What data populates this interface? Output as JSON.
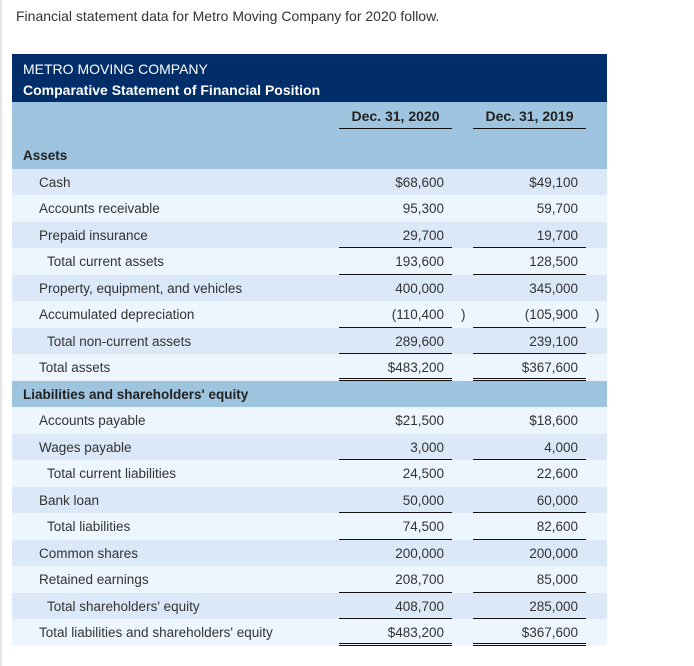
{
  "intro": "Financial statement data for Metro Moving Company for 2020 follow.",
  "company": "METRO MOVING COMPANY",
  "statement": "Comparative Statement of Financial Position",
  "columns": [
    "Dec. 31, 2020",
    "Dec. 31, 2019"
  ],
  "rows": [
    {
      "label": "Assets",
      "type": "sec"
    },
    {
      "label": "Cash",
      "v1": "$68,600",
      "v2": "$49,100"
    },
    {
      "label": "Accounts receivable",
      "v1": "95,300",
      "v2": "59,700"
    },
    {
      "label": "Prepaid insurance",
      "v1": "29,700",
      "v2": "19,700",
      "line": "u"
    },
    {
      "label": "Total current assets",
      "type": "tot",
      "v1": "193,600",
      "v2": "128,500",
      "line": "u"
    },
    {
      "label": "Property, equipment, and vehicles",
      "v1": "400,000",
      "v2": "345,000"
    },
    {
      "label": "Accumulated depreciation",
      "v1": "(110,400",
      "v2": "(105,900",
      "paren": ")",
      "line": "u"
    },
    {
      "label": "Total non-current assets",
      "type": "tot",
      "v1": "289,600",
      "v2": "239,100",
      "line": "u"
    },
    {
      "label": "Total assets",
      "v1": "$483,200",
      "v2": "$367,600",
      "line": "dbl"
    },
    {
      "label": "Liabilities and shareholders' equity",
      "type": "sec"
    },
    {
      "label": "Accounts payable",
      "v1": "$21,500",
      "v2": "$18,600"
    },
    {
      "label": "Wages payable",
      "v1": "3,000",
      "v2": "4,000",
      "line": "u"
    },
    {
      "label": "Total current liabilities",
      "type": "tot",
      "v1": "24,500",
      "v2": "22,600"
    },
    {
      "label": "Bank loan",
      "v1": "50,000",
      "v2": "60,000",
      "line": "u"
    },
    {
      "label": "Total liabilities",
      "type": "tot",
      "v1": "74,500",
      "v2": "82,600",
      "line": "u"
    },
    {
      "label": "Common shares",
      "v1": "200,000",
      "v2": "200,000"
    },
    {
      "label": "Retained earnings",
      "v1": "208,700",
      "v2": "85,000",
      "line": "u"
    },
    {
      "label": "Total shareholders' equity",
      "type": "tot",
      "v1": "408,700",
      "v2": "285,000",
      "line": "u"
    },
    {
      "label": "Total liabilities and shareholders' equity",
      "v1": "$483,200",
      "v2": "$367,600",
      "line": "dbl"
    }
  ]
}
